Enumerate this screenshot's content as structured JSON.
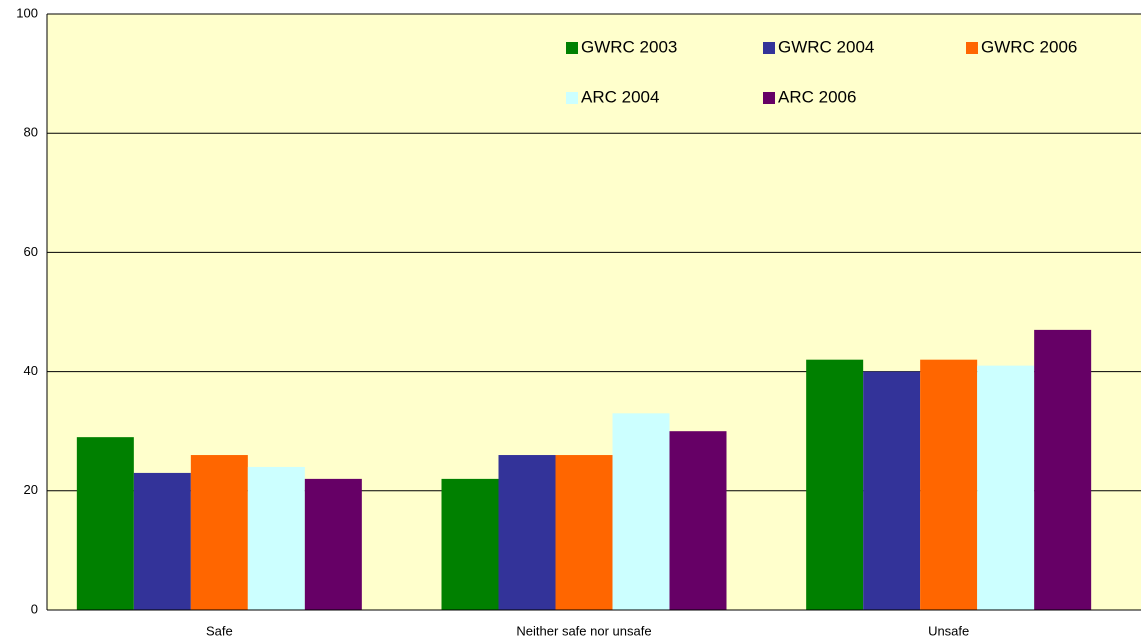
{
  "chart_data": {
    "type": "bar",
    "categories": [
      "Safe",
      "Neither safe nor unsafe",
      "Unsafe"
    ],
    "series": [
      {
        "name": "GWRC 2003",
        "color": "#008000",
        "values": [
          29,
          22,
          42
        ]
      },
      {
        "name": "GWRC 2004",
        "color": "#333399",
        "values": [
          23,
          26,
          40
        ]
      },
      {
        "name": "GWRC 2006",
        "color": "#ff6600",
        "values": [
          26,
          26,
          42
        ]
      },
      {
        "name": "ARC 2004",
        "color": "#ccffff",
        "values": [
          24,
          33,
          41
        ]
      },
      {
        "name": "ARC 2006",
        "color": "#660066",
        "values": [
          22,
          30,
          47
        ]
      }
    ],
    "ylim": [
      0,
      100
    ],
    "yticks": [
      0,
      20,
      40,
      60,
      80,
      100
    ],
    "grid": true,
    "legend": "upper right",
    "background": "#ffffcc"
  }
}
